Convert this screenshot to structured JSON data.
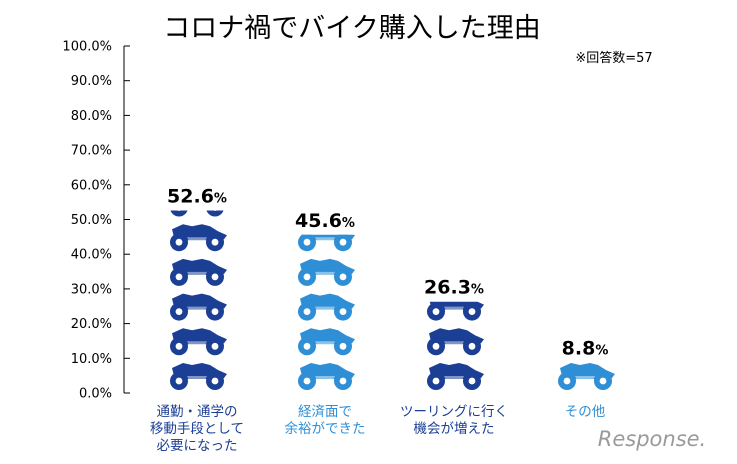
{
  "chart_data": {
    "type": "bar",
    "title": "コロナ禍でバイク購入した理由",
    "note": "※回答数=57",
    "categories": [
      {
        "lines": [
          "通勤・通学の",
          "移動手段として",
          "必要になった"
        ]
      },
      {
        "lines": [
          "経済面で",
          "余裕ができた"
        ]
      },
      {
        "lines": [
          "ツーリングに行く",
          "機会が増えた"
        ]
      },
      {
        "lines": [
          "その他"
        ]
      }
    ],
    "values": [
      52.6,
      45.6,
      26.3,
      8.8
    ],
    "value_labels": [
      {
        "num": "52.6",
        "unit": "%"
      },
      {
        "num": "45.6",
        "unit": "%"
      },
      {
        "num": "26.3",
        "unit": "%"
      },
      {
        "num": "8.8",
        "unit": "%"
      }
    ],
    "yticks": [
      "0.0%",
      "10.0%",
      "20.0%",
      "30.0%",
      "40.0%",
      "50.0%",
      "60.0%",
      "70.0%",
      "80.0%",
      "90.0%",
      "100.0%"
    ],
    "ylim": [
      0,
      100
    ],
    "bar_colors": [
      "#1b3f94",
      "#2f8fd6",
      "#1b3f94",
      "#2f8fd6"
    ],
    "label_colors": [
      "#1b3f94",
      "#2f8fd6",
      "#1b3f94",
      "#2f8fd6"
    ],
    "mark": "motorcycle-icon",
    "grid": false
  },
  "watermark": "Response."
}
